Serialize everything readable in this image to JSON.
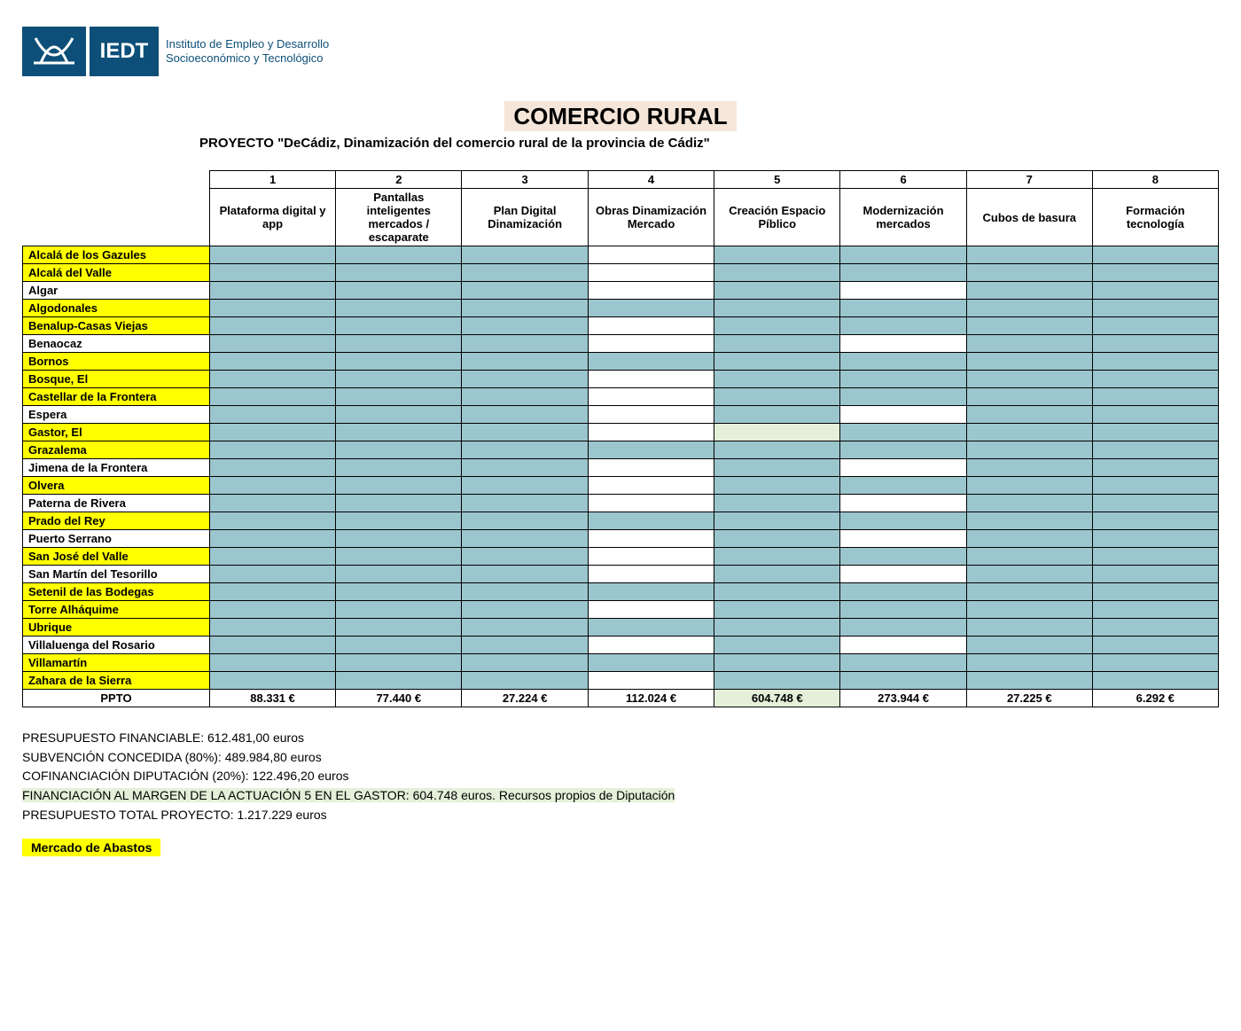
{
  "logo": {
    "abbrev": "IEDT",
    "line1": "Instituto de Empleo y Desarrollo",
    "line2": "Socioeconómico y Tecnológico"
  },
  "title": "COMERCIO RURAL",
  "subtitle": "PROYECTO \"DeCádiz, Dinamización del comercio rural de la provincia de Cádiz\"",
  "columns": [
    {
      "num": "1",
      "desc": "Plataforma digital y app"
    },
    {
      "num": "2",
      "desc": "Pantallas inteligentes mercados / escaparate"
    },
    {
      "num": "3",
      "desc": "Plan Digital Dinamización"
    },
    {
      "num": "4",
      "desc": "Obras Dinamización Mercado"
    },
    {
      "num": "5",
      "desc": "Creación Espacio Píblico"
    },
    {
      "num": "6",
      "desc": "Modernización mercados"
    },
    {
      "num": "7",
      "desc": "Cubos de basura"
    },
    {
      "num": "8",
      "desc": "Formación tecnología"
    }
  ],
  "colors": {
    "blue_fill": "#9cc6ce",
    "green_fill": "#e4f0d9",
    "yellow_row": "#ffff00",
    "logo_bg": "#0d4f78"
  },
  "rows": [
    {
      "name": "Alcalá de los Gazules",
      "yellow": true,
      "cells": [
        "blue",
        "blue",
        "blue",
        "",
        "blue",
        "blue",
        "blue",
        "blue"
      ]
    },
    {
      "name": "Alcalá del Valle",
      "yellow": true,
      "cells": [
        "blue",
        "blue",
        "blue",
        "",
        "blue",
        "blue",
        "blue",
        "blue"
      ]
    },
    {
      "name": "Algar",
      "yellow": false,
      "cells": [
        "blue",
        "blue",
        "blue",
        "",
        "blue",
        "",
        "blue",
        "blue"
      ]
    },
    {
      "name": "Algodonales",
      "yellow": true,
      "cells": [
        "blue",
        "blue",
        "blue",
        "blue",
        "blue",
        "blue",
        "blue",
        "blue"
      ]
    },
    {
      "name": "Benalup-Casas Viejas",
      "yellow": true,
      "cells": [
        "blue",
        "blue",
        "blue",
        "",
        "blue",
        "blue",
        "blue",
        "blue"
      ]
    },
    {
      "name": "Benaocaz",
      "yellow": false,
      "cells": [
        "blue",
        "blue",
        "blue",
        "",
        "blue",
        "",
        "blue",
        "blue"
      ]
    },
    {
      "name": "Bornos",
      "yellow": true,
      "cells": [
        "blue",
        "blue",
        "blue",
        "blue",
        "blue",
        "blue",
        "blue",
        "blue"
      ]
    },
    {
      "name": "Bosque, El",
      "yellow": true,
      "cells": [
        "blue",
        "blue",
        "blue",
        "",
        "blue",
        "blue",
        "blue",
        "blue"
      ]
    },
    {
      "name": "Castellar de la Frontera",
      "yellow": true,
      "cells": [
        "blue",
        "blue",
        "blue",
        "",
        "blue",
        "blue",
        "blue",
        "blue"
      ]
    },
    {
      "name": "Espera",
      "yellow": false,
      "cells": [
        "blue",
        "blue",
        "blue",
        "",
        "blue",
        "",
        "blue",
        "blue"
      ]
    },
    {
      "name": "Gastor, El",
      "yellow": true,
      "cells": [
        "blue",
        "blue",
        "blue",
        "",
        "green",
        "blue",
        "blue",
        "blue"
      ]
    },
    {
      "name": "Grazalema",
      "yellow": true,
      "cells": [
        "blue",
        "blue",
        "blue",
        "blue",
        "blue",
        "blue",
        "blue",
        "blue"
      ]
    },
    {
      "name": "Jimena de la Frontera",
      "yellow": false,
      "cells": [
        "blue",
        "blue",
        "blue",
        "",
        "blue",
        "",
        "blue",
        "blue"
      ]
    },
    {
      "name": "Olvera",
      "yellow": true,
      "cells": [
        "blue",
        "blue",
        "blue",
        "",
        "blue",
        "blue",
        "blue",
        "blue"
      ]
    },
    {
      "name": "Paterna de Rivera",
      "yellow": false,
      "cells": [
        "blue",
        "blue",
        "blue",
        "",
        "blue",
        "",
        "blue",
        "blue"
      ]
    },
    {
      "name": "Prado del Rey",
      "yellow": true,
      "cells": [
        "blue",
        "blue",
        "blue",
        "blue",
        "blue",
        "blue",
        "blue",
        "blue"
      ]
    },
    {
      "name": "Puerto Serrano",
      "yellow": false,
      "cells": [
        "blue",
        "blue",
        "blue",
        "",
        "blue",
        "",
        "blue",
        "blue"
      ]
    },
    {
      "name": "San José del Valle",
      "yellow": true,
      "cells": [
        "blue",
        "blue",
        "blue",
        "",
        "blue",
        "blue",
        "blue",
        "blue"
      ]
    },
    {
      "name": "San Martín del Tesorillo",
      "yellow": false,
      "cells": [
        "blue",
        "blue",
        "blue",
        "",
        "blue",
        "",
        "blue",
        "blue"
      ]
    },
    {
      "name": "Setenil de las Bodegas",
      "yellow": true,
      "cells": [
        "blue",
        "blue",
        "blue",
        "blue",
        "blue",
        "blue",
        "blue",
        "blue"
      ]
    },
    {
      "name": "Torre Alháquime",
      "yellow": true,
      "cells": [
        "blue",
        "blue",
        "blue",
        "",
        "blue",
        "blue",
        "blue",
        "blue"
      ]
    },
    {
      "name": "Ubrique",
      "yellow": true,
      "cells": [
        "blue",
        "blue",
        "blue",
        "blue",
        "blue",
        "blue",
        "blue",
        "blue"
      ]
    },
    {
      "name": "Villaluenga del Rosario",
      "yellow": false,
      "cells": [
        "blue",
        "blue",
        "blue",
        "",
        "blue",
        "",
        "blue",
        "blue"
      ]
    },
    {
      "name": "Villamartín",
      "yellow": true,
      "cells": [
        "blue",
        "blue",
        "blue",
        "blue",
        "blue",
        "blue",
        "blue",
        "blue"
      ]
    },
    {
      "name": "Zahara de la Sierra",
      "yellow": true,
      "cells": [
        "blue",
        "blue",
        "blue",
        "",
        "blue",
        "blue",
        "blue",
        "blue"
      ]
    }
  ],
  "ppto": {
    "label": "PPTO",
    "values": [
      "88.331 €",
      "77.440 €",
      "27.224 €",
      "112.024 €",
      "604.748 €",
      "273.944 €",
      "27.225 €",
      "6.292 €"
    ],
    "highlight_green_index": 4
  },
  "notes": [
    {
      "text": "PRESUPUESTO FINANCIABLE: 612.481,00 euros",
      "green": false
    },
    {
      "text": "SUBVENCIÓN CONCEDIDA (80%): 489.984,80 euros",
      "green": false
    },
    {
      "text": "COFINANCIACIÓN DIPUTACIÓN (20%): 122.496,20 euros",
      "green": false
    },
    {
      "text": "FINANCIACIÓN AL MARGEN DE LA ACTUACIÓN 5 EN EL GASTOR: 604.748 euros. Recursos propios de Diputación",
      "green": true
    },
    {
      "text": "PRESUPUESTO TOTAL PROYECTO: 1.217.229 euros",
      "green": false
    }
  ],
  "legend": "Mercado de Abastos"
}
